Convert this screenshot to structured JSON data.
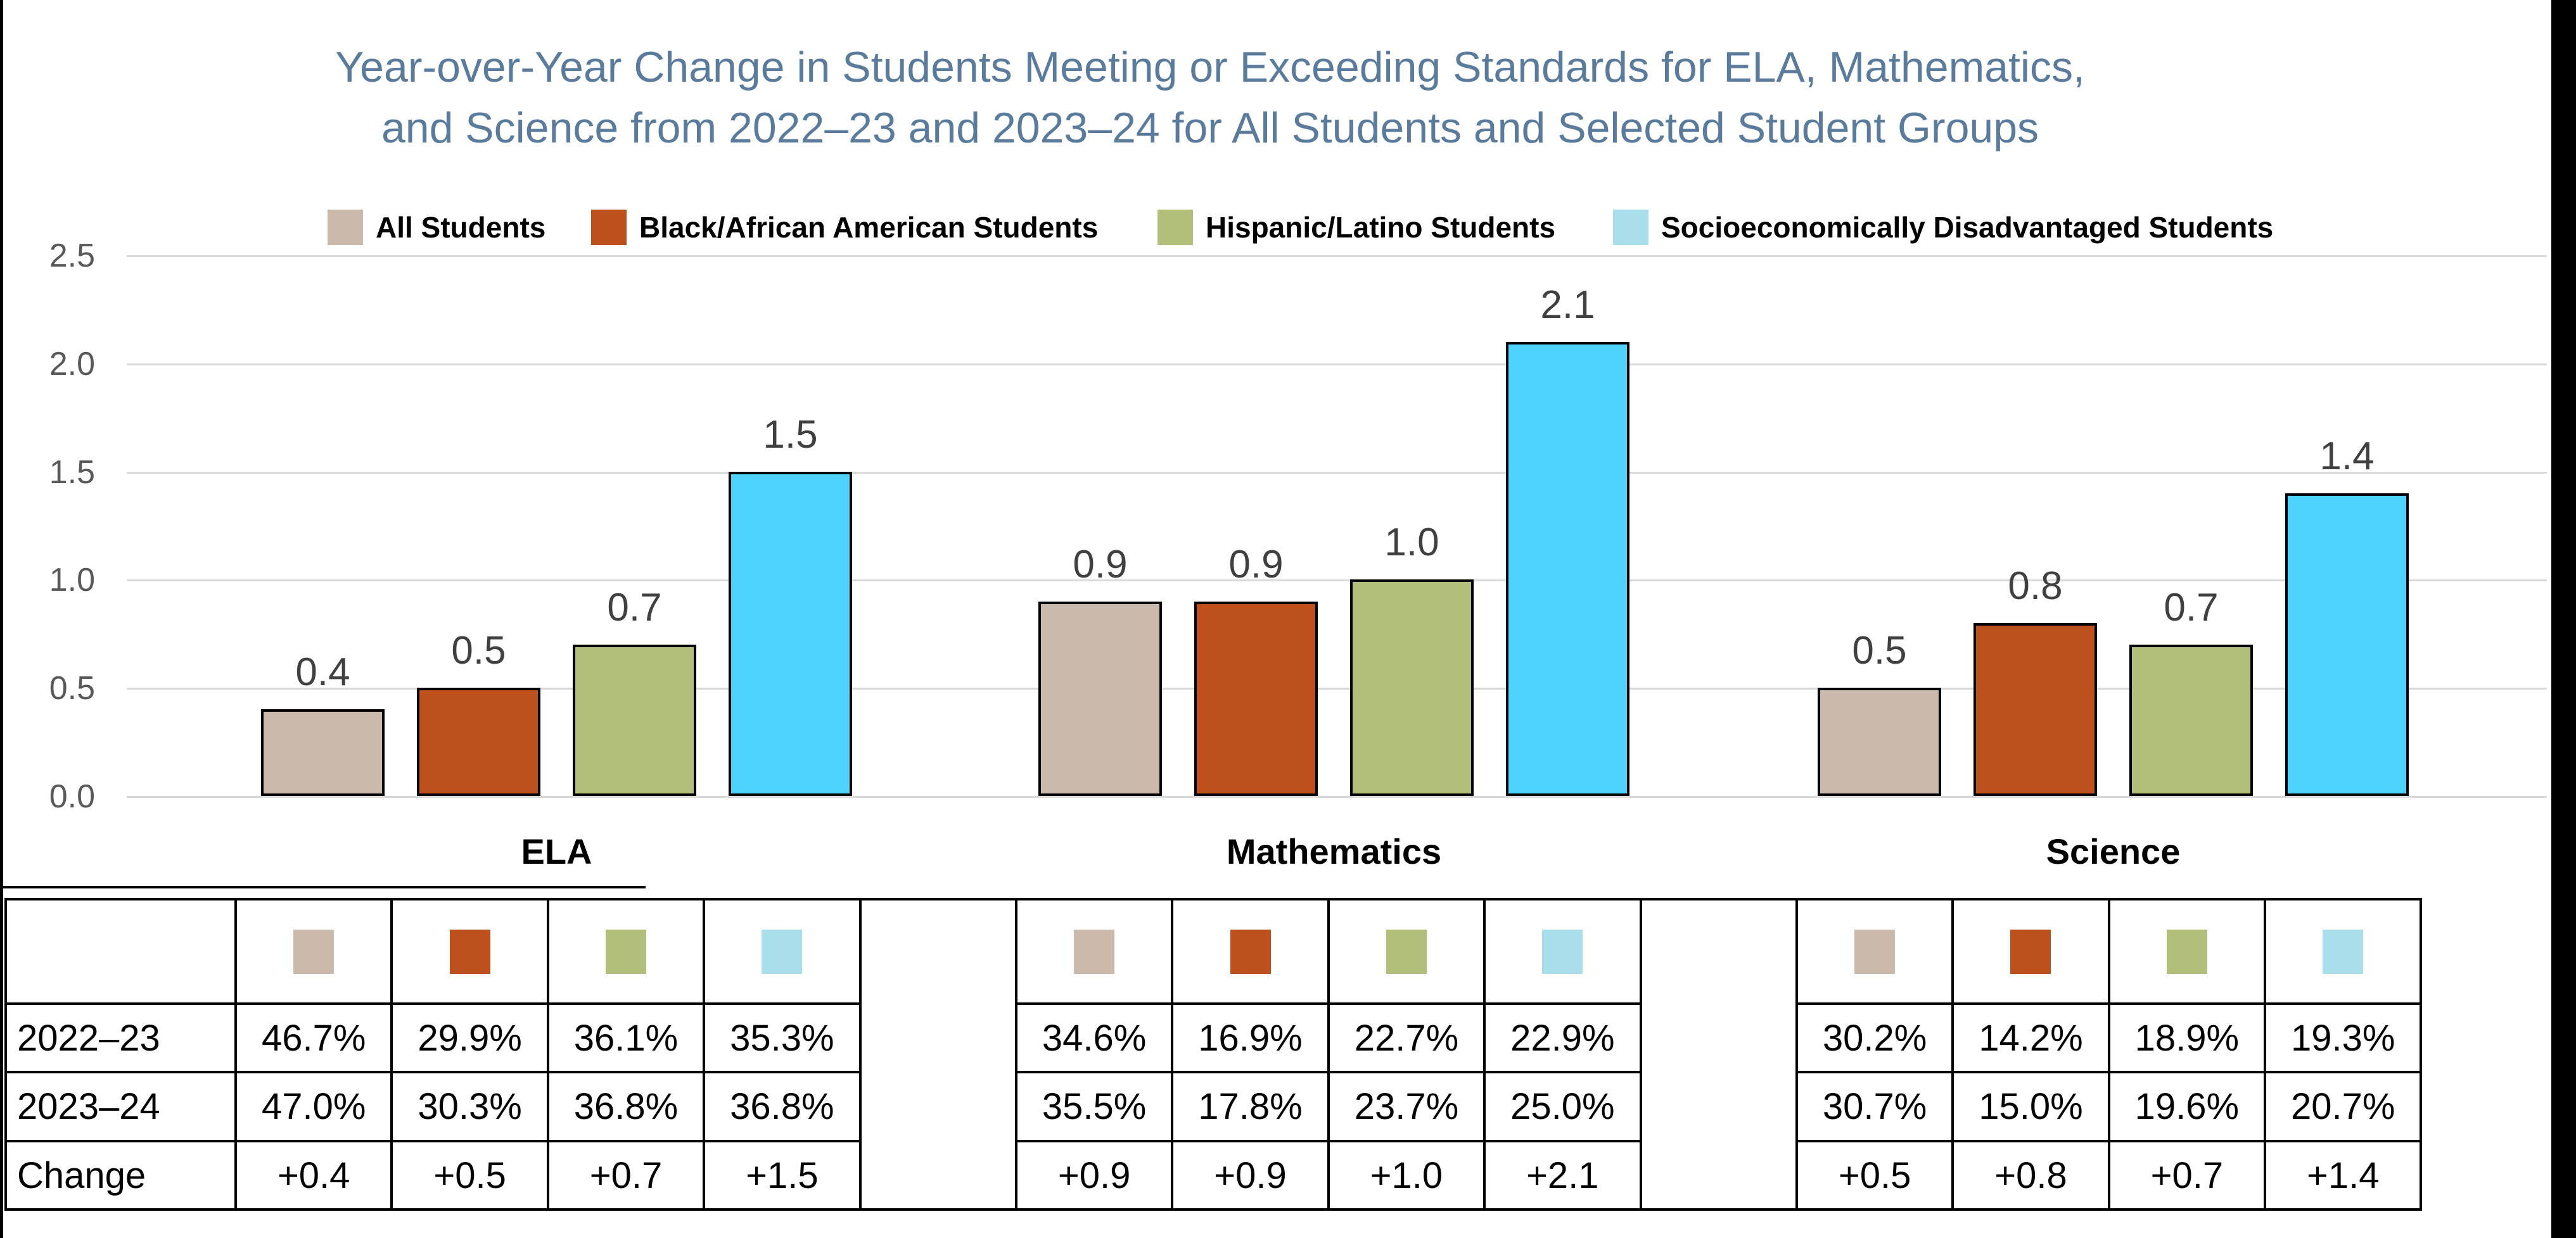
{
  "title": {
    "line1": "Year-over-Year Change in Students Meeting or Exceeding Standards for ELA, Mathematics,",
    "line2": "and Science from 2022–23 and 2023–24 for All Students and Selected Student Groups",
    "color": "#5B7B9C"
  },
  "chart_data": {
    "type": "bar",
    "categories": [
      "ELA",
      "Mathematics",
      "Science"
    ],
    "series": [
      {
        "name": "All Students",
        "bar_color": "#CBB9AC",
        "legend_color": "#CBB9AC",
        "values": [
          0.4,
          0.9,
          0.5
        ]
      },
      {
        "name": "Black/African American Students",
        "bar_color": "#BC511E",
        "legend_color": "#BC511E",
        "values": [
          0.5,
          0.9,
          0.8
        ]
      },
      {
        "name": "Hispanic/Latino Students",
        "bar_color": "#B2BF7A",
        "legend_color": "#B2BF7A",
        "values": [
          0.7,
          1.0,
          0.7
        ]
      },
      {
        "name": "Socioeconomically Disadvantaged Students",
        "bar_color": "#4ED3FE",
        "legend_color": "#A9DFEA",
        "values": [
          1.5,
          2.1,
          1.4
        ]
      }
    ],
    "ylim": [
      0,
      2.5
    ],
    "ytick_step": 0.5,
    "yticks": [
      "0.0",
      "0.5",
      "1.0",
      "1.5",
      "2.0",
      "2.5"
    ],
    "grid": true,
    "legend_position": "top",
    "data_labels_shown": true,
    "gridline_color": "#D9D9D9",
    "axis_tick_color": "#595959",
    "value_label_color": "#404040"
  },
  "table": {
    "header_swatch_colors": [
      "#CBB9AC",
      "#BC511E",
      "#B2BF7A",
      "#A9DFEA"
    ],
    "row_labels": [
      "2022–23",
      "2023–24",
      "Change"
    ],
    "sections": [
      {
        "subject": "ELA",
        "rows": [
          [
            "46.7%",
            "29.9%",
            "36.1%",
            "35.3%"
          ],
          [
            "47.0%",
            "30.3%",
            "36.8%",
            "36.8%"
          ],
          [
            "+0.4",
            "+0.5",
            "+0.7",
            "+1.5"
          ]
        ]
      },
      {
        "subject": "Mathematics",
        "rows": [
          [
            "34.6%",
            "16.9%",
            "22.7%",
            "22.9%"
          ],
          [
            "35.5%",
            "17.8%",
            "23.7%",
            "25.0%"
          ],
          [
            "+0.9",
            "+0.9",
            "+1.0",
            "+2.1"
          ]
        ]
      },
      {
        "subject": "Science",
        "rows": [
          [
            "30.2%",
            "14.2%",
            "18.9%",
            "19.3%"
          ],
          [
            "30.7%",
            "15.0%",
            "19.6%",
            "20.7%"
          ],
          [
            "+0.5",
            "+0.8",
            "+0.7",
            "+1.4"
          ]
        ]
      }
    ]
  }
}
